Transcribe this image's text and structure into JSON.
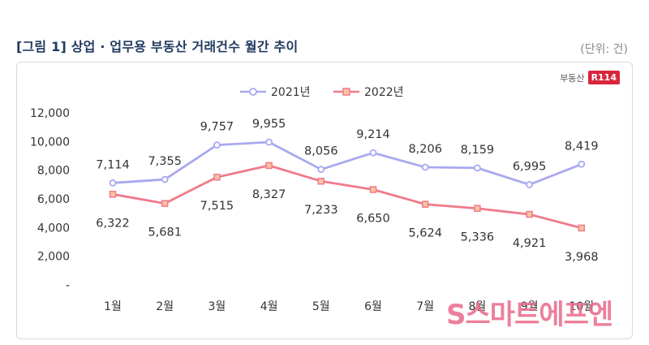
{
  "header": {
    "title": "[그림 1] 상업 · 업무용 부동산 거래건수 월간 추이",
    "unit": "(단위: 건)"
  },
  "logo": {
    "text": "부동산",
    "badge": "R114"
  },
  "watermark": "S스마트에프엔",
  "colors": {
    "series_2021": "#a9a9f0",
    "series_2022": "#f07a8c",
    "axis_text": "#333333"
  },
  "chart_data": {
    "type": "line",
    "categories": [
      "1월",
      "2월",
      "3월",
      "4월",
      "5월",
      "6월",
      "7월",
      "8월",
      "9월",
      "10월"
    ],
    "series": [
      {
        "name": "2021년",
        "values": [
          7114,
          7355,
          9757,
          9955,
          8056,
          9214,
          8206,
          8159,
          6995,
          8419
        ]
      },
      {
        "name": "2022년",
        "values": [
          6322,
          5681,
          7515,
          8327,
          7233,
          6650,
          5624,
          5336,
          4921,
          3968
        ]
      }
    ],
    "data_labels": {
      "2021년": [
        "7,114",
        "7,355",
        "9,757",
        "9,955",
        "8,056",
        "9,214",
        "8,206",
        "8,159",
        "6,995",
        "8,419"
      ],
      "2022년": [
        "6,322",
        "5,681",
        "7,515",
        "8,327",
        "7,233",
        "6,650",
        "5,624",
        "5,336",
        "4,921",
        "3,968"
      ]
    },
    "yticks": [
      "-",
      "2,000",
      "4,000",
      "6,000",
      "8,000",
      "10,000",
      "12,000"
    ],
    "ytick_values": [
      0,
      2000,
      4000,
      6000,
      8000,
      10000,
      12000
    ],
    "ylim": [
      0,
      12000
    ],
    "legend_position": "top-center",
    "grid": false
  }
}
